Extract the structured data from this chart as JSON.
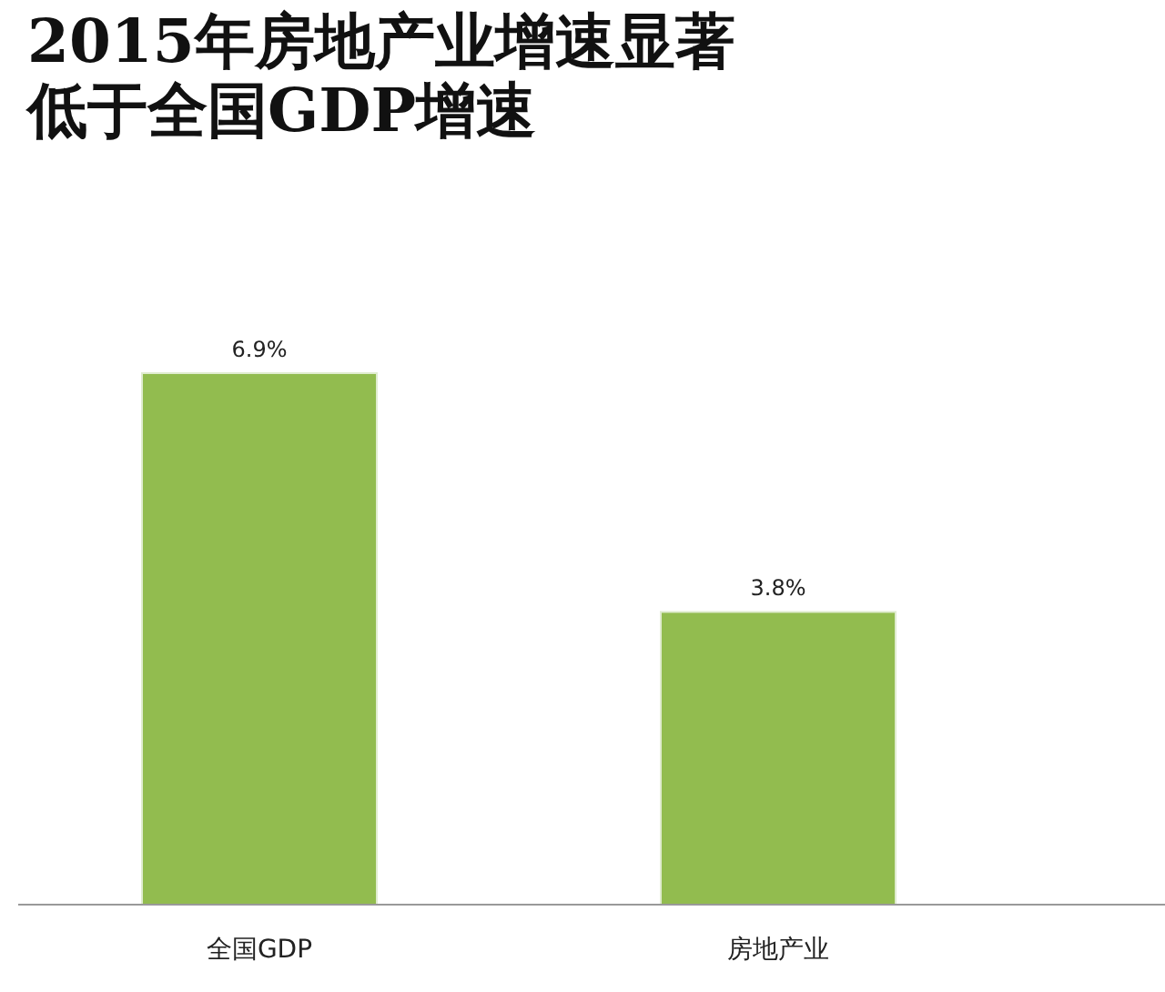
{
  "chart_data": {
    "type": "bar",
    "title": "2015年房地产业增速显著低于全国GDP增速",
    "categories": [
      "全国GDP",
      "房地产业"
    ],
    "values": [
      6.9,
      3.8
    ],
    "value_labels": [
      "6.9%",
      "3.8%"
    ],
    "color": "#92bc4f"
  }
}
